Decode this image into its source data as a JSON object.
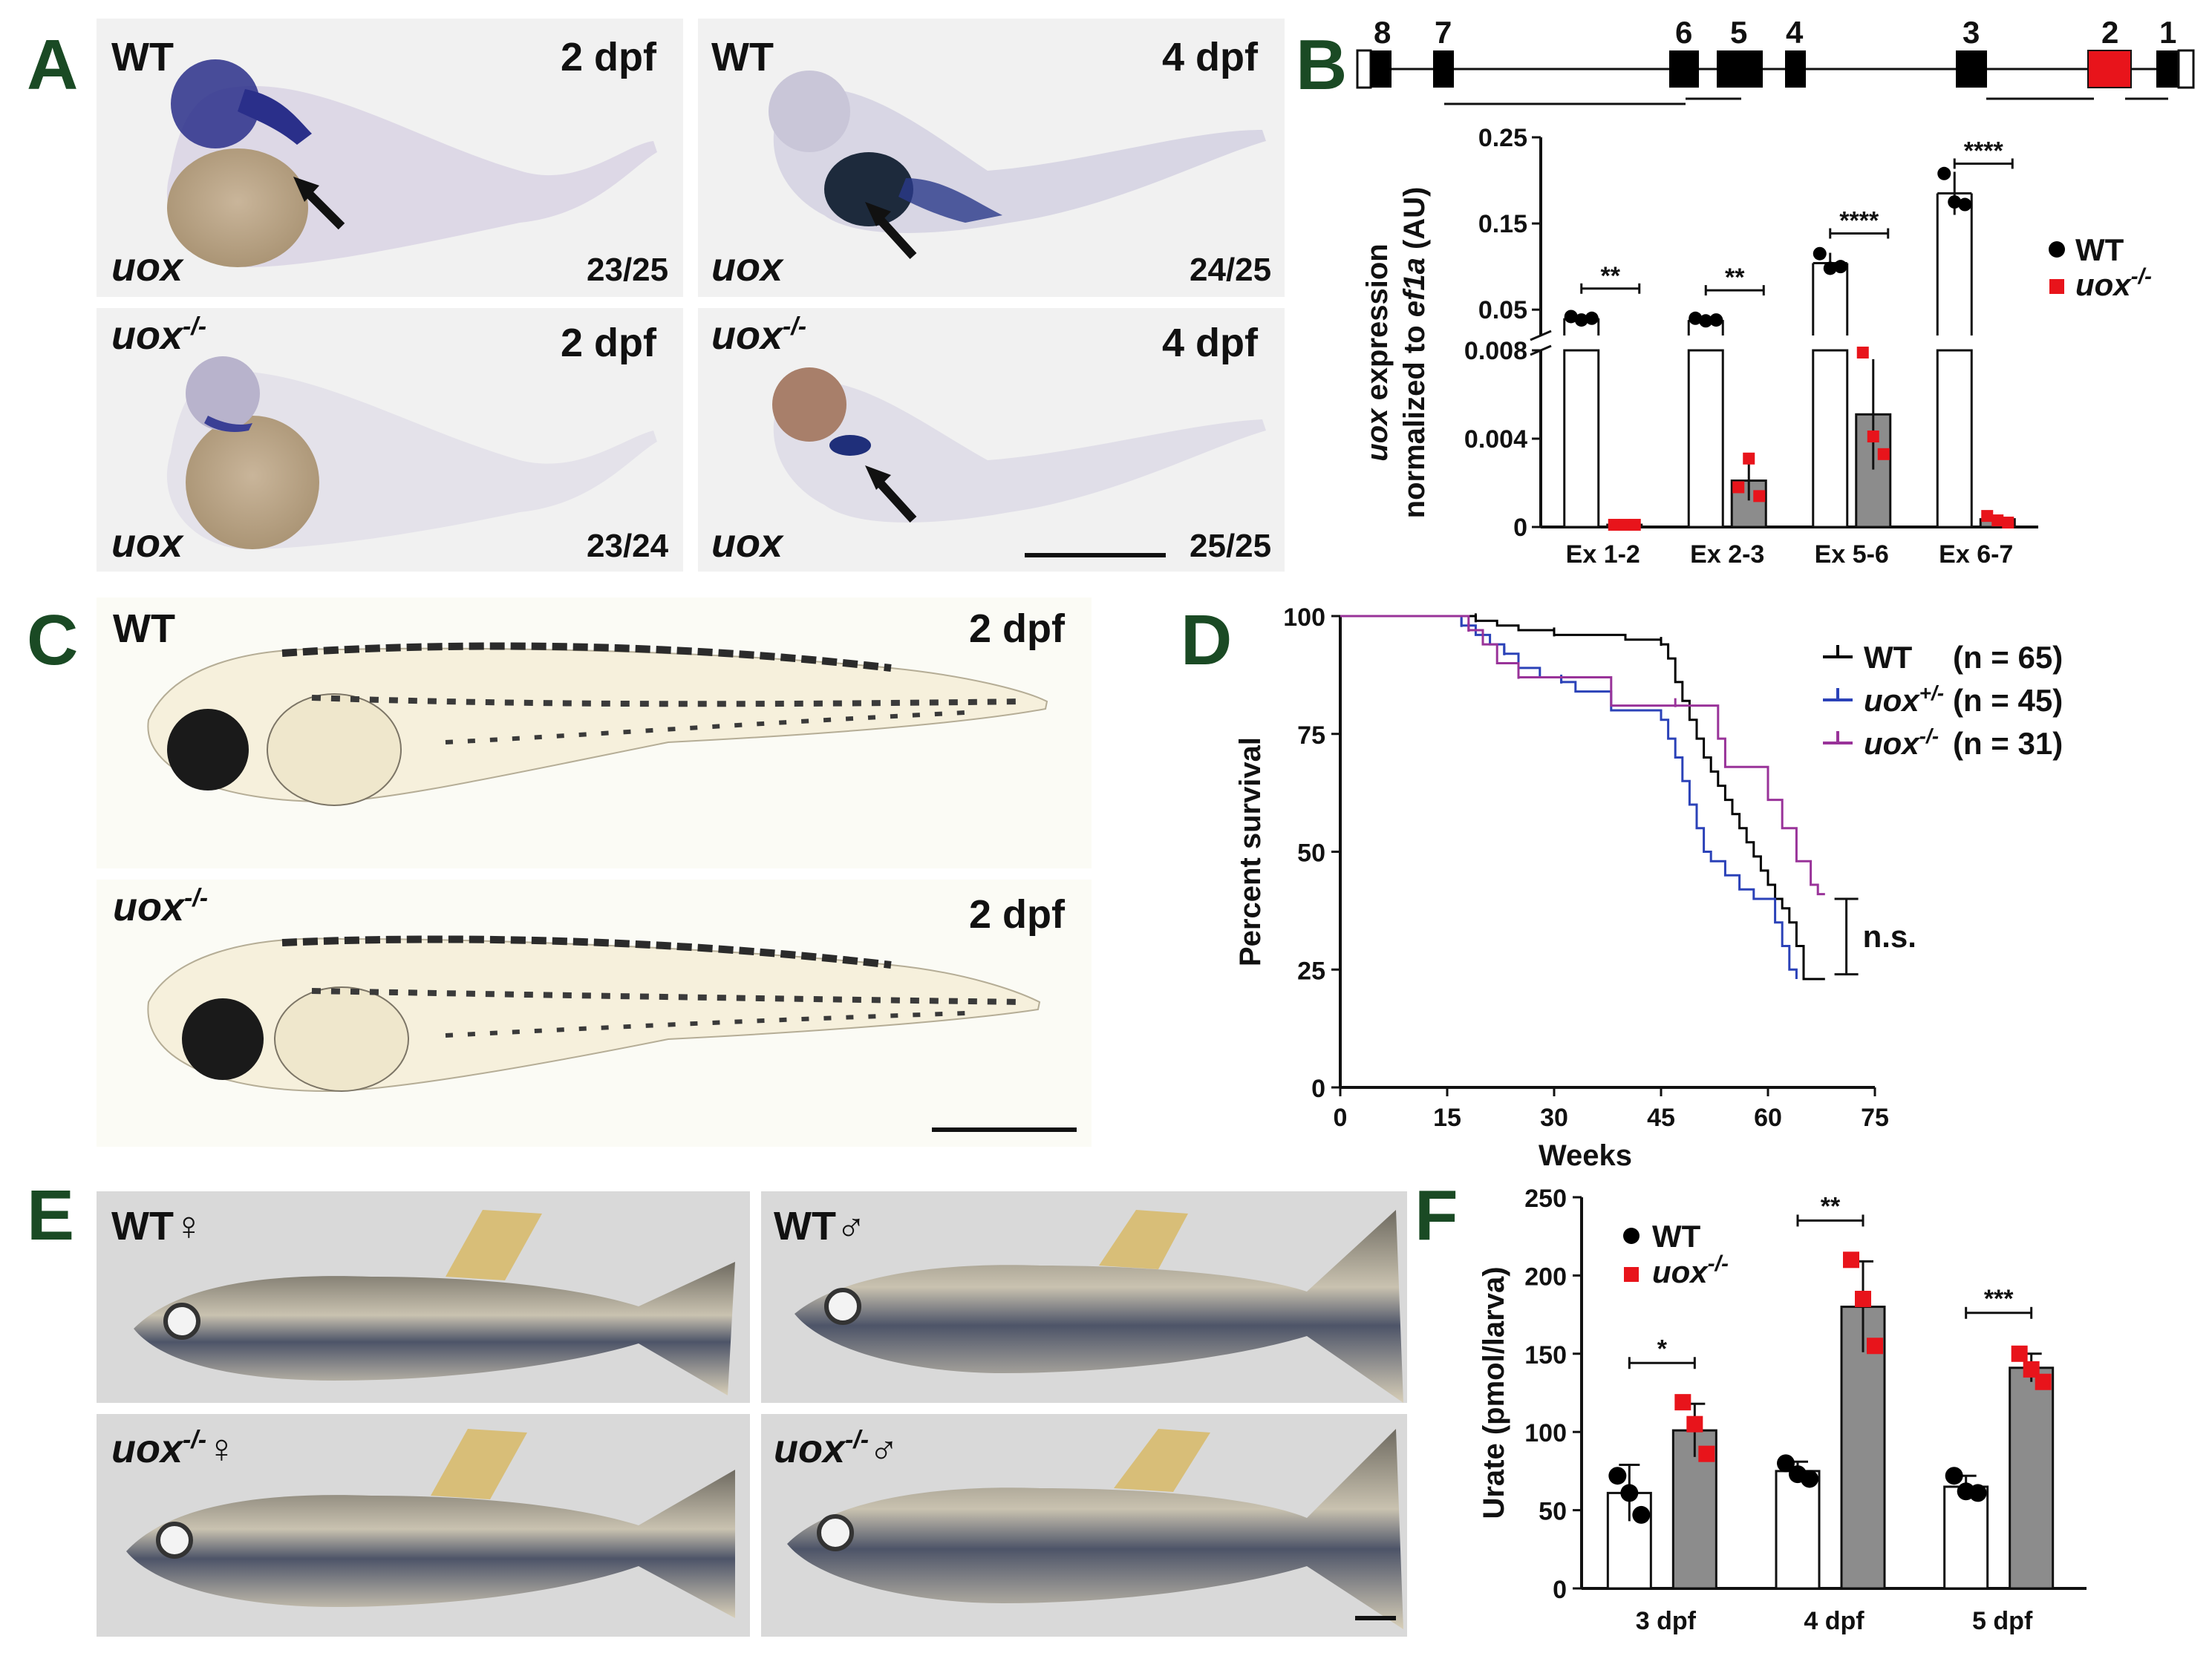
{
  "panelA": {
    "letter": "A",
    "tiles": [
      {
        "genotype": "WT",
        "stage": "2 dpf",
        "probe": "uox",
        "count": "23/25"
      },
      {
        "genotype": "WT",
        "stage": "4 dpf",
        "probe": "uox",
        "count": "24/25"
      },
      {
        "genotype": "uox",
        "genotype_sup": "-/-",
        "stage": "2 dpf",
        "probe": "uox",
        "count": "23/24"
      },
      {
        "genotype": "uox",
        "genotype_sup": "-/-",
        "stage": "4 dpf",
        "probe": "uox",
        "count": "25/25"
      }
    ]
  },
  "panelB": {
    "letter": "B",
    "exons": [
      "8",
      "7",
      "6",
      "5",
      "4",
      "3",
      "2",
      "1"
    ],
    "ylabel_line1_italic": "uox",
    "ylabel_line1_rest": " expression",
    "ylabel_line2_rest": "normalized to ",
    "ylabel_line2_italic": "ef1a",
    "ylabel_line2_tail": " (AU)",
    "legend": [
      {
        "name": "WT",
        "color": "#000000"
      },
      {
        "name": "uox",
        "sup": "-/-",
        "color": "#e8141b"
      }
    ]
  },
  "panelC": {
    "letter": "C",
    "rows": [
      {
        "genotype": "WT",
        "stage": "2 dpf"
      },
      {
        "genotype": "uox",
        "genotype_sup": "-/-",
        "stage": "2 dpf"
      }
    ]
  },
  "panelD": {
    "letter": "D",
    "annotation": "n.s."
  },
  "panelE": {
    "letter": "E",
    "tiles": [
      {
        "genotype": "WT",
        "sex": "♀"
      },
      {
        "genotype": "WT",
        "sex": "♂"
      },
      {
        "genotype": "uox",
        "genotype_sup": "-/-",
        "sex": "♀"
      },
      {
        "genotype": "uox",
        "genotype_sup": "-/-",
        "sex": "♂"
      }
    ]
  },
  "panelF": {
    "letter": "F",
    "legend": [
      {
        "name": "WT",
        "color": "#000000"
      },
      {
        "name": "uox",
        "sup": "-/-",
        "color": "#e8141b"
      }
    ]
  },
  "chart_data": [
    {
      "id": "B",
      "type": "bar",
      "categories": [
        "Ex 1-2",
        "Ex 2-3",
        "Ex 5-6",
        "Ex 6-7"
      ],
      "series": [
        {
          "name": "WT",
          "values": [
            0.04,
            0.038,
            0.104,
            0.185
          ],
          "err": [
            0.004,
            0.002,
            0.012,
            0.025
          ],
          "points": [
            [
              0.042,
              0.038,
              0.04
            ],
            [
              0.04,
              0.037,
              0.038
            ],
            [
              0.115,
              0.098,
              0.1
            ],
            [
              0.208,
              0.175,
              0.172
            ]
          ]
        },
        {
          "name": "uox-/-",
          "values": [
            0.0001,
            0.0021,
            0.0051,
            0.00035
          ],
          "err": [
            5e-05,
            0.0009,
            0.0025,
            0.00015
          ],
          "points": [
            [
              0.0001,
              0.0001,
              0.0001
            ],
            [
              0.0018,
              0.0031,
              0.0014
            ],
            [
              0.0079,
              0.0041,
              0.0033
            ],
            [
              0.0005,
              0.0003,
              0.0002
            ]
          ]
        }
      ],
      "ylabel": "uox expression normalized to ef1a (AU)",
      "yticks_upper": [
        "0.25",
        "0.15",
        "0.05"
      ],
      "yticks_lower": [
        "0.008",
        "0.004",
        "0"
      ],
      "ylim_upper": [
        0.02,
        0.25
      ],
      "ylim_lower": [
        0,
        0.008
      ],
      "significance": [
        "**",
        "**",
        "****",
        "****"
      ]
    },
    {
      "id": "D",
      "type": "line",
      "title": "",
      "xlabel": "Weeks",
      "ylabel": "Percent survival",
      "xlim": [
        0,
        75
      ],
      "ylim": [
        0,
        100
      ],
      "xticks": [
        "0",
        "15",
        "30",
        "45",
        "60",
        "75"
      ],
      "yticks": [
        "0",
        "25",
        "50",
        "75",
        "100"
      ],
      "series": [
        {
          "name": "WT",
          "label": "WT",
          "n": "(n = 65)",
          "color": "#000000",
          "x": [
            0,
            15,
            19,
            22,
            25,
            30,
            36,
            40,
            45,
            46,
            47,
            48,
            49,
            50,
            51,
            52,
            53,
            54,
            55,
            56,
            57,
            58,
            59,
            60,
            61,
            62,
            63,
            64,
            65,
            68
          ],
          "y": [
            100,
            100,
            99,
            98,
            97,
            96,
            96,
            95,
            94,
            91,
            86,
            82,
            78,
            74,
            70,
            67,
            64,
            61,
            58,
            55,
            52,
            49,
            46,
            43,
            40,
            38,
            35,
            30,
            23,
            23
          ]
        },
        {
          "name": "uox+/-",
          "label": "uox",
          "sup": "+/-",
          "n": "(n = 45)",
          "color": "#2b42b8",
          "x": [
            0,
            15,
            17,
            19,
            21,
            23,
            25,
            28,
            31,
            33,
            38,
            43,
            45,
            46,
            47,
            48,
            49,
            50,
            51,
            52,
            54,
            56,
            58,
            60,
            61,
            62,
            63,
            64
          ],
          "y": [
            100,
            100,
            98,
            96,
            94,
            92,
            89,
            87,
            86,
            84,
            80,
            80,
            78,
            74,
            70,
            65,
            60,
            55,
            50,
            48,
            45,
            42,
            40,
            40,
            35,
            30,
            25,
            23
          ]
        },
        {
          "name": "uox-/-",
          "label": "uox",
          "sup": "-/-",
          "n": "(n = 31)",
          "color": "#993399",
          "x": [
            0,
            16,
            18,
            20,
            22,
            25,
            30,
            38,
            47,
            52,
            53,
            54,
            57,
            60,
            62,
            64,
            66,
            67,
            68
          ],
          "y": [
            100,
            100,
            97,
            94,
            90,
            87,
            87,
            81,
            81,
            81,
            74,
            68,
            68,
            61,
            55,
            48,
            43,
            41,
            41
          ]
        }
      ],
      "annotation": "n.s."
    },
    {
      "id": "F",
      "type": "bar",
      "categories": [
        "3 dpf",
        "4 dpf",
        "5 dpf"
      ],
      "ylabel": "Urate (pmol/larva)",
      "ylim": [
        0,
        250
      ],
      "yticks": [
        "0",
        "50",
        "100",
        "150",
        "200",
        "250"
      ],
      "series": [
        {
          "name": "WT",
          "values": [
            61,
            75,
            65
          ],
          "err": [
            18,
            6,
            7
          ],
          "points": [
            [
              72,
              61,
              47
            ],
            [
              80,
              73,
              70
            ],
            [
              72,
              62,
              61
            ]
          ]
        },
        {
          "name": "uox-/-",
          "values": [
            101,
            180,
            141
          ],
          "err": [
            17,
            29,
            9
          ],
          "points": [
            [
              119,
              105,
              86
            ],
            [
              210,
              185,
              155
            ],
            [
              150,
              140,
              132
            ]
          ]
        }
      ],
      "significance": [
        "*",
        "**",
        "***"
      ]
    }
  ]
}
